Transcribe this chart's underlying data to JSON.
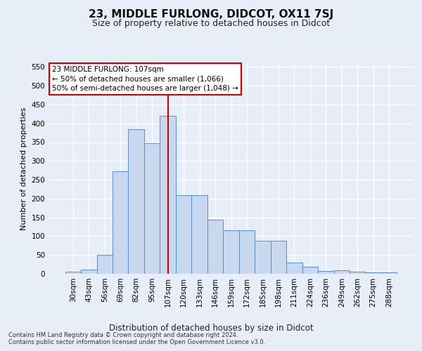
{
  "title": "23, MIDDLE FURLONG, DIDCOT, OX11 7SJ",
  "subtitle": "Size of property relative to detached houses in Didcot",
  "xlabel": "Distribution of detached houses by size in Didcot",
  "ylabel": "Number of detached properties",
  "categories": [
    "30sqm",
    "43sqm",
    "56sqm",
    "69sqm",
    "82sqm",
    "95sqm",
    "107sqm",
    "120sqm",
    "133sqm",
    "146sqm",
    "159sqm",
    "172sqm",
    "185sqm",
    "198sqm",
    "211sqm",
    "224sqm",
    "236sqm",
    "249sqm",
    "262sqm",
    "275sqm",
    "288sqm"
  ],
  "values": [
    5,
    12,
    50,
    272,
    385,
    347,
    420,
    210,
    210,
    143,
    115,
    115,
    88,
    88,
    30,
    18,
    7,
    10,
    5,
    3,
    3
  ],
  "bar_color": "#c8d9ef",
  "bar_edge_color": "#5b8fc9",
  "highlight_index": 6,
  "highlight_line_color": "#cc0000",
  "annotation_line1": "23 MIDDLE FURLONG: 107sqm",
  "annotation_line2": "← 50% of detached houses are smaller (1,066)",
  "annotation_line3": "50% of semi-detached houses are larger (1,048) →",
  "annotation_box_facecolor": "#ffffff",
  "annotation_box_edgecolor": "#cc0000",
  "ylim": [
    0,
    560
  ],
  "yticks": [
    0,
    50,
    100,
    150,
    200,
    250,
    300,
    350,
    400,
    450,
    500,
    550
  ],
  "footnote_line1": "Contains HM Land Registry data © Crown copyright and database right 2024.",
  "footnote_line2": "Contains public sector information licensed under the Open Government Licence v3.0.",
  "background_color": "#e8eef7",
  "grid_color": "#ffffff",
  "title_fontsize": 11,
  "subtitle_fontsize": 9,
  "ylabel_fontsize": 8,
  "xlabel_fontsize": 8.5,
  "tick_fontsize": 7.5,
  "annotation_fontsize": 7.5,
  "footnote_fontsize": 6.0
}
